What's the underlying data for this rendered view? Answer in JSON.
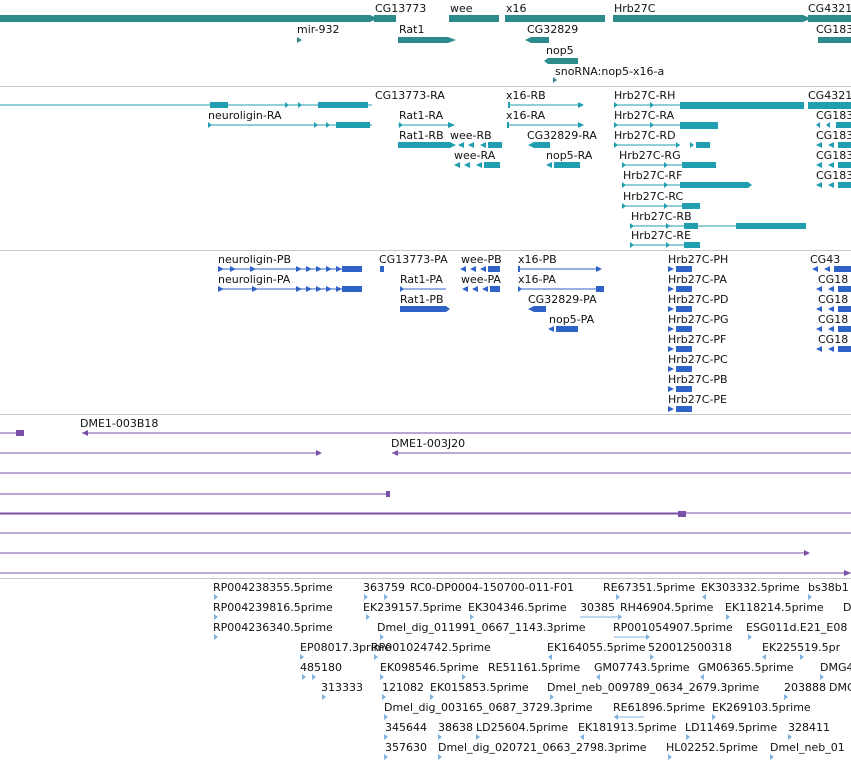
{
  "colors": {
    "gene": "#2e8b8b",
    "transcript": "#1f9fb0",
    "protein": "#2f63c8",
    "clone": "#7a4fa8",
    "est": "#7fb2dc",
    "separator": "#c8c8c8",
    "label": "#111111"
  },
  "tracks": {
    "genes": {
      "labels": [
        "CG13773",
        "wee",
        "x16",
        "Hrb27C",
        "CG4321",
        "mir-932",
        "Rat1",
        "CG32829",
        "CG183",
        "nop5",
        "snoRNA:nop5-x16-a"
      ]
    },
    "transcripts": {
      "labels": [
        "CG13773-RA",
        "x16-RB",
        "Hrb27C-RH",
        "CG4321",
        "neuroligin-RA",
        "Rat1-RA",
        "x16-RA",
        "Hrb27C-RA",
        "CG183",
        "Rat1-RB",
        "wee-RB",
        "CG32829-RA",
        "Hrb27C-RD",
        "CG183",
        "wee-RA",
        "nop5-RA",
        "Hrb27C-RG",
        "CG183",
        "Hrb27C-RF",
        "CG183",
        "Hrb27C-RC",
        "Hrb27C-RB",
        "Hrb27C-RE"
      ]
    },
    "proteins": {
      "labels": [
        "neuroligin-PB",
        "CG13773-PA",
        "wee-PB",
        "x16-PB",
        "CG43",
        "neuroligin-PA",
        "Rat1-PA",
        "wee-PA",
        "x16-PA",
        "Hrb27C-PH",
        "Hrb27C-PA",
        "CG18",
        "Rat1-PB",
        "CG32829-PA",
        "Hrb27C-PD",
        "CG18",
        "nop5-PA",
        "Hrb27C-PG",
        "CG18",
        "Hrb27C-PF",
        "CG18",
        "Hrb27C-PC",
        "Hrb27C-PB",
        "Hrb27C-PE"
      ]
    },
    "clones": {
      "labels": [
        "DME1-003B18",
        "DME1-003J20"
      ]
    },
    "ests": {
      "labels": [
        "RP004238355.5prime",
        "363759",
        "RC0-DP0004-150700-011-F01",
        "RE67351.5prime",
        "EK303332.5prime",
        "bs38b1",
        "RP004239816.5prime",
        "EK239157.5prime",
        "EK304346.5prime",
        "30385",
        "RH46904.5prime",
        "EK118214.5prime",
        "D",
        "RP004236340.5prime",
        "Dmel_dig_011991_0667_1143.3prime",
        "RP001054907.5prime",
        "ESG011d.E21_E08",
        "EP08017.3prime",
        "RP001024742.5prime",
        "EK164055.5prime",
        "520012500318",
        "EK225519.5pr",
        "485180",
        "EK098546.5prime",
        "RE51161.5prime",
        "GM07743.5prime",
        "GM06365.5prime",
        "DMG4",
        "313333",
        "121082",
        "EK015853.5prime",
        "Dmel_neb_009789_0634_2679.3prime",
        "203888",
        "DMG",
        "Dmel_dig_003165_0687_3729.3prime",
        "RE61896.5prime",
        "EK269103.5prime",
        "345644",
        "38638",
        "LD25604.5prime",
        "EK181913.5prime",
        "LD11469.5prime",
        "328411",
        "357630",
        "Dmel_dig_020721_0663_2798.3prime",
        "HL02252.5prime",
        "Dmel_neb_01"
      ]
    }
  }
}
